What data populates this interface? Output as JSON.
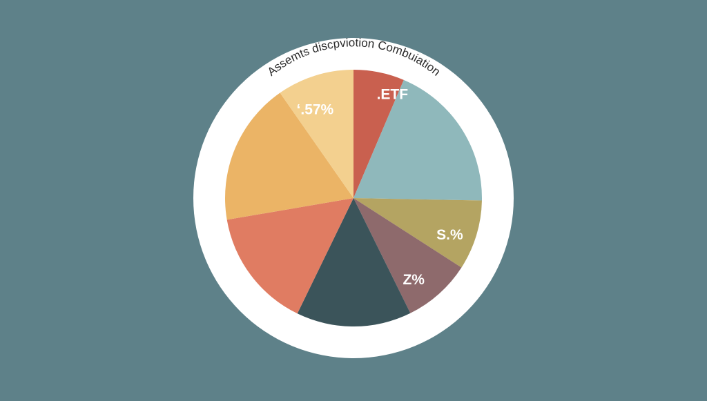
{
  "background_color": "#5e8189",
  "ring_color": "#ffffff",
  "chart_data": {
    "type": "pie",
    "title": "Assemts discpviotion Combuiation",
    "start_angle_deg": 0,
    "direction": "clockwise",
    "slices": [
      {
        "label": ".ETF",
        "value": 6.4,
        "color": "#c9604f",
        "label_color": "#ffffff"
      },
      {
        "label": "",
        "value": 18.9,
        "color": "#8fb8bb",
        "label_color": "#ffffff"
      },
      {
        "label": "S.%",
        "value": 8.8,
        "color": "#b4a462",
        "label_color": "#ffffff"
      },
      {
        "label": "Z%",
        "value": 8.6,
        "color": "#8e6a6c",
        "label_color": "#ffffff"
      },
      {
        "label": "",
        "value": 14.5,
        "color": "#3b545a",
        "label_color": "#ffffff"
      },
      {
        "label": "",
        "value": 15.1,
        "color": "#e07c62",
        "label_color": "#ffffff"
      },
      {
        "label": "",
        "value": 18.0,
        "color": "#ebb466",
        "label_color": "#ffffff"
      },
      {
        "label": "ʻ.57%",
        "value": 9.7,
        "color": "#f3d08f",
        "label_color": "#ffffff"
      }
    ]
  }
}
